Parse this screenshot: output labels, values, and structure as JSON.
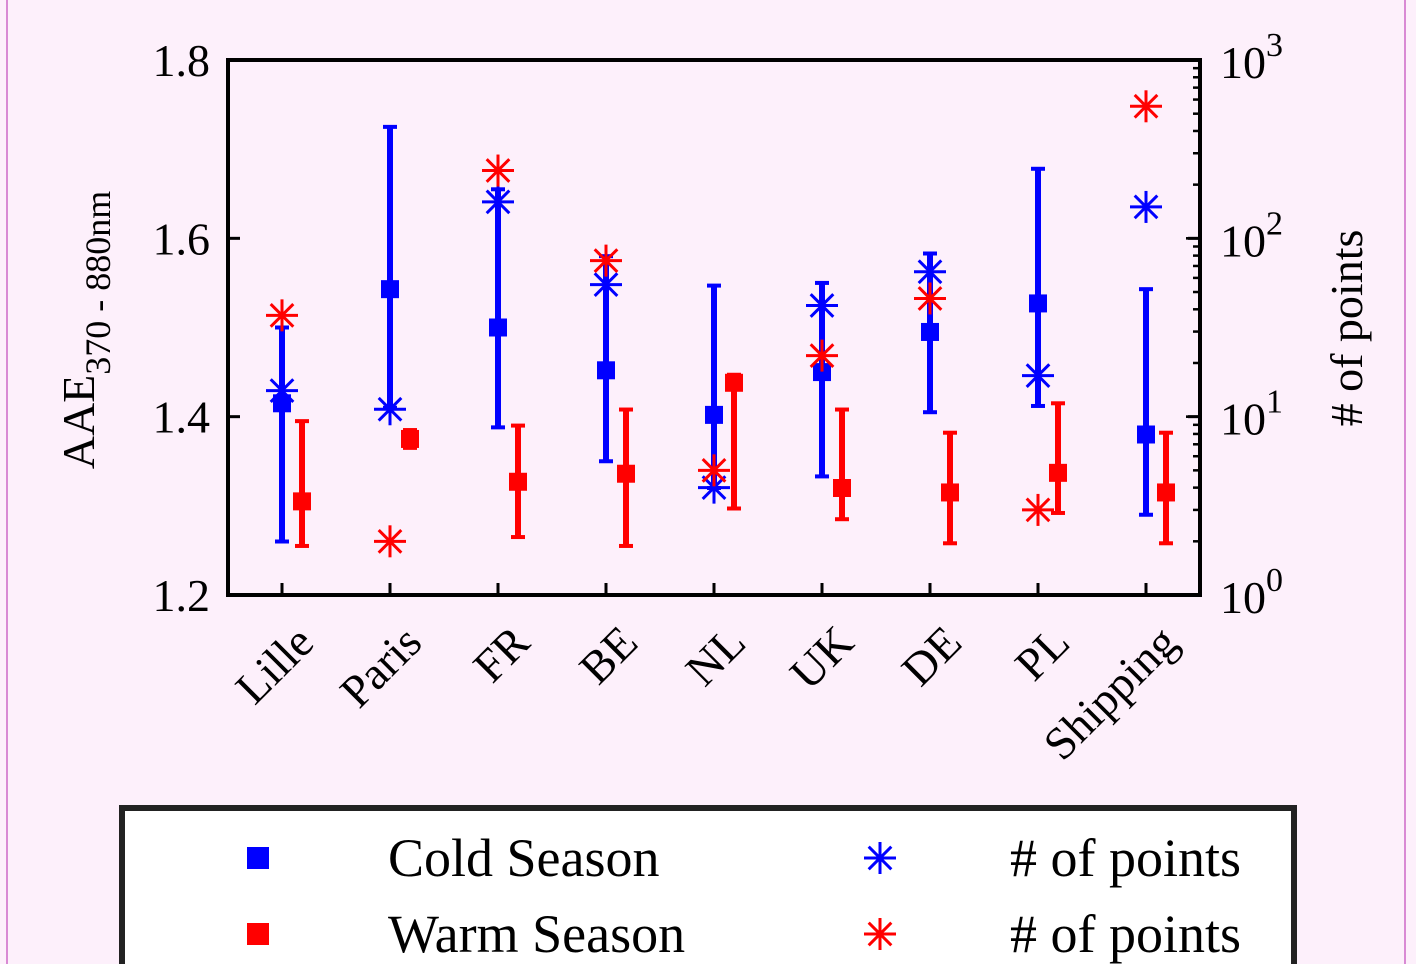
{
  "chart_data": {
    "type": "scatter",
    "categories": [
      "Lille",
      "Paris",
      "FR",
      "BE",
      "NL",
      "UK",
      "DE",
      "PL",
      "Shipping"
    ],
    "ylabel_main": "AAE",
    "ylabel_sub": "370 - 880nm",
    "y2label": "# of points",
    "ylim": [
      1.2,
      1.8
    ],
    "yticks": [
      "1.2",
      "1.4",
      "1.6",
      "1.8"
    ],
    "y2lim": [
      1,
      1000
    ],
    "y2_scale": "log",
    "y2ticks": [
      {
        "base": "10",
        "exp": "0"
      },
      {
        "base": "10",
        "exp": "1"
      },
      {
        "base": "10",
        "exp": "2"
      },
      {
        "base": "10",
        "exp": "3"
      }
    ],
    "cold": {
      "name": "Cold Season",
      "color": "#0000ff",
      "mean": [
        1.415,
        1.543,
        1.5,
        1.452,
        1.402,
        1.45,
        1.495,
        1.527,
        1.38
      ],
      "err_low": [
        1.26,
        1.41,
        1.388,
        1.35,
        1.32,
        1.333,
        1.405,
        1.412,
        1.29
      ],
      "err_high": [
        1.5,
        1.725,
        1.655,
        1.58,
        1.547,
        1.55,
        1.583,
        1.678,
        1.543
      ],
      "n_points": [
        14,
        11,
        160,
        55,
        4,
        42,
        65,
        17,
        150
      ]
    },
    "warm": {
      "name": "Warm Season",
      "color": "#ff0000",
      "mean": [
        1.305,
        1.375,
        1.327,
        1.336,
        1.438,
        1.32,
        1.315,
        1.337,
        1.315
      ],
      "err_low": [
        1.255,
        1.365,
        1.265,
        1.255,
        1.297,
        1.285,
        1.258,
        1.292,
        1.258
      ],
      "err_high": [
        1.395,
        1.385,
        1.39,
        1.408,
        1.447,
        1.408,
        1.382,
        1.415,
        1.382
      ],
      "n_points": [
        37,
        2,
        240,
        75,
        5,
        22,
        46,
        3,
        550
      ]
    },
    "legend": {
      "position": "bottom",
      "entries": [
        {
          "label": "Cold Season",
          "color": "#0000ff",
          "marker": "square"
        },
        {
          "label": "# of points",
          "color": "#0000ff",
          "marker": "asterisk"
        },
        {
          "label": "Warm Season",
          "color": "#ff0000",
          "marker": "square"
        },
        {
          "label": "# of points",
          "color": "#ff0000",
          "marker": "asterisk"
        }
      ]
    }
  }
}
